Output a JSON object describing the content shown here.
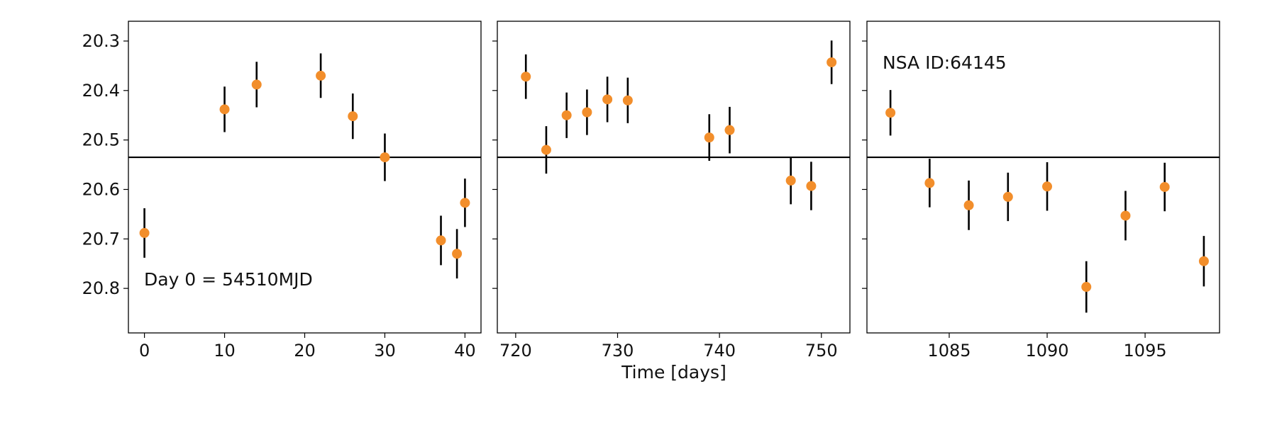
{
  "chart_data": {
    "type": "scatter",
    "xlabel": "Time [days]",
    "ylabel": "",
    "ylim": [
      20.89,
      20.26
    ],
    "y_inverted": true,
    "y_ticks": [
      20.3,
      20.4,
      20.5,
      20.6,
      20.7,
      20.8
    ],
    "reference_line_y": 20.535,
    "marker_color": "#f28e2b",
    "errorbar_color": "#000000",
    "grid": false,
    "panels": [
      {
        "xlim": [
          -2,
          42
        ],
        "x_ticks": [
          0,
          10,
          20,
          30,
          40
        ],
        "annotation": "Day 0 = 54510MJD",
        "points": [
          {
            "x": 0,
            "y": 20.688,
            "err": 0.05
          },
          {
            "x": 10,
            "y": 20.438,
            "err": 0.046
          },
          {
            "x": 14,
            "y": 20.388,
            "err": 0.046
          },
          {
            "x": 22,
            "y": 20.37,
            "err": 0.045
          },
          {
            "x": 26,
            "y": 20.452,
            "err": 0.046
          },
          {
            "x": 30,
            "y": 20.535,
            "err": 0.048
          },
          {
            "x": 37,
            "y": 20.703,
            "err": 0.05
          },
          {
            "x": 39,
            "y": 20.73,
            "err": 0.05
          },
          {
            "x": 40,
            "y": 20.627,
            "err": 0.049
          }
        ]
      },
      {
        "xlim": [
          718.2,
          752.8
        ],
        "x_ticks": [
          720,
          730,
          740,
          750
        ],
        "annotation": "",
        "points": [
          {
            "x": 721,
            "y": 20.372,
            "err": 0.045
          },
          {
            "x": 723,
            "y": 20.52,
            "err": 0.048
          },
          {
            "x": 725,
            "y": 20.45,
            "err": 0.046
          },
          {
            "x": 727,
            "y": 20.444,
            "err": 0.046
          },
          {
            "x": 729,
            "y": 20.418,
            "err": 0.046
          },
          {
            "x": 731,
            "y": 20.42,
            "err": 0.046
          },
          {
            "x": 739,
            "y": 20.495,
            "err": 0.047
          },
          {
            "x": 741,
            "y": 20.48,
            "err": 0.047
          },
          {
            "x": 747,
            "y": 20.582,
            "err": 0.048
          },
          {
            "x": 749,
            "y": 20.593,
            "err": 0.049
          },
          {
            "x": 751,
            "y": 20.343,
            "err": 0.044
          }
        ]
      },
      {
        "xlim": [
          1080.8,
          1098.8
        ],
        "x_ticks": [
          1085,
          1090,
          1095
        ],
        "annotation": "NSA ID:64145",
        "points": [
          {
            "x": 1082,
            "y": 20.445,
            "err": 0.046
          },
          {
            "x": 1084,
            "y": 20.587,
            "err": 0.049
          },
          {
            "x": 1086,
            "y": 20.632,
            "err": 0.05
          },
          {
            "x": 1088,
            "y": 20.615,
            "err": 0.049
          },
          {
            "x": 1090,
            "y": 20.594,
            "err": 0.049
          },
          {
            "x": 1092,
            "y": 20.797,
            "err": 0.052
          },
          {
            "x": 1094,
            "y": 20.653,
            "err": 0.05
          },
          {
            "x": 1096,
            "y": 20.595,
            "err": 0.049
          },
          {
            "x": 1098,
            "y": 20.745,
            "err": 0.051
          }
        ]
      }
    ]
  }
}
